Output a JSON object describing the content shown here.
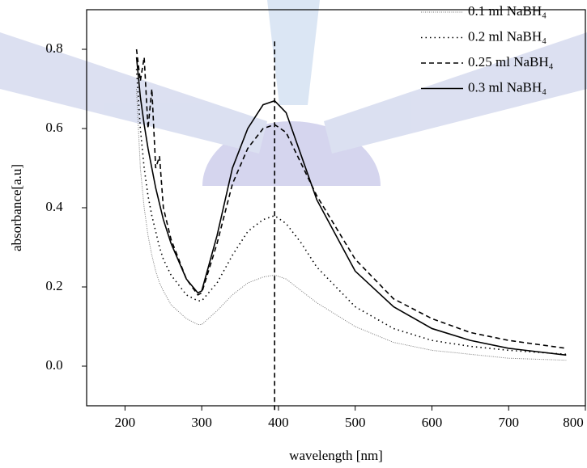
{
  "chart_data": {
    "type": "line",
    "x_label": "wavelength [nm]",
    "y_label": "absorbance[a.u]",
    "x": [
      215,
      220,
      225,
      230,
      235,
      240,
      245,
      250,
      260,
      280,
      295,
      300,
      320,
      340,
      360,
      380,
      395,
      410,
      430,
      450,
      500,
      550,
      600,
      650,
      700,
      775
    ],
    "series": [
      {
        "name": "0.1 ml NaBH₄",
        "color": "#777777",
        "dash": "fine-dot",
        "values": [
          0.7,
          0.5,
          0.4,
          0.33,
          0.28,
          0.24,
          0.21,
          0.19,
          0.155,
          0.12,
          0.105,
          0.105,
          0.14,
          0.18,
          0.21,
          0.225,
          0.23,
          0.22,
          0.19,
          0.16,
          0.1,
          0.06,
          0.04,
          0.03,
          0.02,
          0.015
        ]
      },
      {
        "name": "0.2 ml NaBH₄",
        "color": "#000000",
        "dash": "dot",
        "values": [
          0.75,
          0.6,
          0.5,
          0.43,
          0.38,
          0.34,
          0.3,
          0.27,
          0.23,
          0.18,
          0.165,
          0.165,
          0.21,
          0.28,
          0.34,
          0.37,
          0.38,
          0.36,
          0.31,
          0.25,
          0.15,
          0.095,
          0.065,
          0.05,
          0.04,
          0.03
        ]
      },
      {
        "name": "0.25 ml NaBH₄",
        "color": "#000000",
        "dash": "dash",
        "values": [
          0.8,
          0.72,
          0.78,
          0.6,
          0.7,
          0.5,
          0.53,
          0.4,
          0.32,
          0.22,
          0.18,
          0.185,
          0.31,
          0.46,
          0.55,
          0.6,
          0.61,
          0.59,
          0.51,
          0.43,
          0.27,
          0.17,
          0.12,
          0.085,
          0.065,
          0.045
        ]
      },
      {
        "name": "0.3 ml NaBH₄",
        "color": "#000000",
        "dash": "solid",
        "values": [
          0.78,
          0.68,
          0.61,
          0.55,
          0.5,
          0.45,
          0.41,
          0.37,
          0.31,
          0.22,
          0.185,
          0.19,
          0.33,
          0.5,
          0.6,
          0.66,
          0.67,
          0.64,
          0.53,
          0.42,
          0.24,
          0.15,
          0.095,
          0.065,
          0.045,
          0.028
        ]
      }
    ],
    "vline": {
      "x": 395,
      "ymax": 0.82
    },
    "xlim": [
      150,
      800
    ],
    "xticks": [
      200,
      300,
      400,
      500,
      600,
      700,
      800
    ],
    "ylim": [
      -0.1,
      0.9
    ],
    "yticks": [
      {
        "value": 0.0,
        "label": "0.0"
      },
      0.2,
      0.4,
      0.6,
      0.8
    ],
    "legend": "top-right",
    "grid": false
  }
}
